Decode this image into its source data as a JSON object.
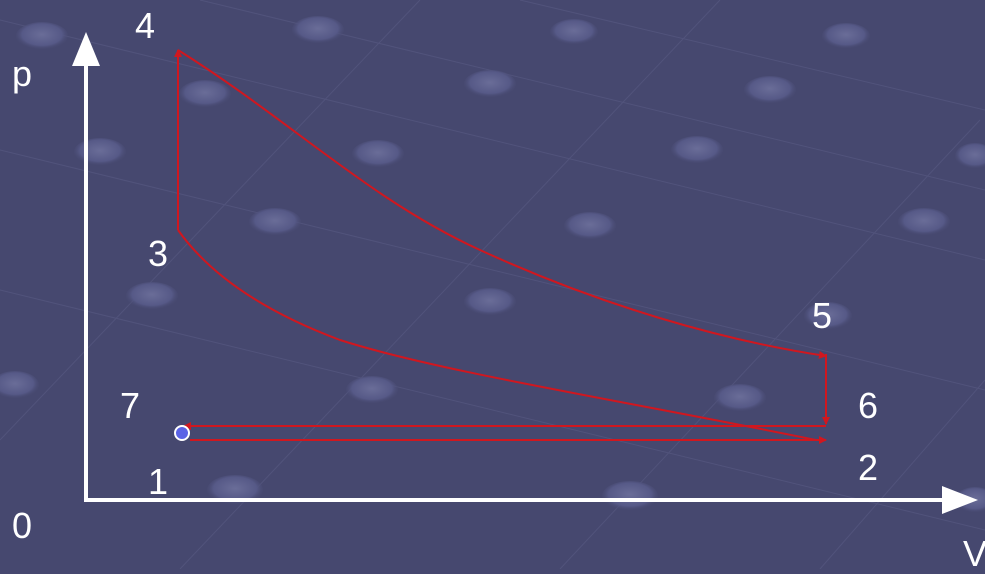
{
  "diagram": {
    "axis_labels": {
      "y": "p",
      "x": "V",
      "origin": "0"
    },
    "points": [
      {
        "id": "1",
        "label": "1"
      },
      {
        "id": "2",
        "label": "2"
      },
      {
        "id": "3",
        "label": "3"
      },
      {
        "id": "4",
        "label": "4"
      },
      {
        "id": "5",
        "label": "5"
      },
      {
        "id": "6",
        "label": "6"
      },
      {
        "id": "7",
        "label": "7"
      }
    ],
    "colors": {
      "background": "#46486f",
      "axes": "#ffffff",
      "cycle": "#d0171f",
      "start_marker": "#5b63e6",
      "labels": "#ffffff"
    }
  }
}
